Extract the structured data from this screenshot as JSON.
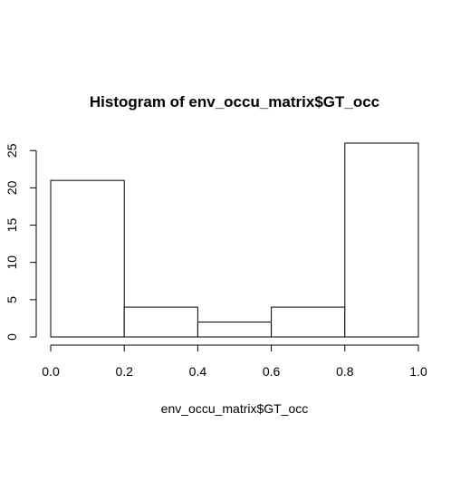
{
  "chart_data": {
    "type": "bar",
    "title": "Histogram of env_occu_matrix$GT_occ",
    "xlabel": "env_occu_matrix$GT_occ",
    "ylabel": "",
    "bins": [
      [
        0.0,
        0.2
      ],
      [
        0.2,
        0.4
      ],
      [
        0.4,
        0.6
      ],
      [
        0.6,
        0.8
      ],
      [
        0.8,
        1.0
      ]
    ],
    "values": [
      21,
      4,
      2,
      4,
      26
    ],
    "xlim": [
      0.0,
      1.0
    ],
    "ylim": [
      0,
      26
    ],
    "xticks": [
      "0.0",
      "0.2",
      "0.4",
      "0.6",
      "0.8",
      "1.0"
    ],
    "yticks": [
      "0",
      "5",
      "10",
      "15",
      "20",
      "25"
    ],
    "grid": false,
    "colors": {
      "bar_fill": "#ffffff",
      "bar_stroke": "#000000"
    }
  }
}
